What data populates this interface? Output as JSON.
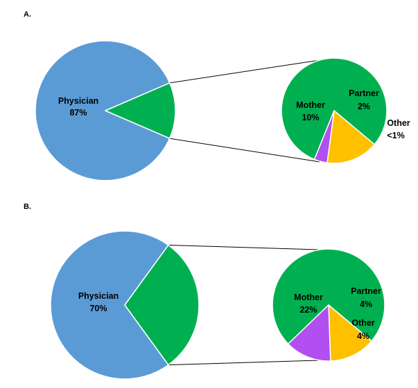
{
  "chart_data": [
    {
      "panel": "A.",
      "type": "bar-of-pie",
      "main_pie": {
        "slices": [
          {
            "name": "Physician",
            "value": 87,
            "label": "87%",
            "color": "#5b9bd5"
          },
          {
            "name": "",
            "value": 13,
            "label": "",
            "color": "#00b050"
          }
        ]
      },
      "detail_pie": {
        "slices": [
          {
            "name": "Mother",
            "value": 10,
            "label": "10%",
            "color": "#00b050"
          },
          {
            "name": "Partner",
            "value": 2,
            "label": "2%",
            "color": "#ffc000"
          },
          {
            "name": "Other",
            "value": 0.5,
            "label": "<1%",
            "color": "#b14ff0"
          }
        ]
      }
    },
    {
      "panel": "B.",
      "type": "bar-of-pie",
      "main_pie": {
        "slices": [
          {
            "name": "Physician",
            "value": 70,
            "label": "70%",
            "color": "#5b9bd5"
          },
          {
            "name": "",
            "value": 30,
            "label": "",
            "color": "#00b050"
          }
        ]
      },
      "detail_pie": {
        "slices": [
          {
            "name": "Mother",
            "value": 22,
            "label": "22%",
            "color": "#00b050"
          },
          {
            "name": "Partner",
            "value": 4,
            "label": "4%",
            "color": "#ffc000"
          },
          {
            "name": "Other",
            "value": 4,
            "label": "4%",
            "color": "#b14ff0"
          }
        ]
      }
    }
  ]
}
